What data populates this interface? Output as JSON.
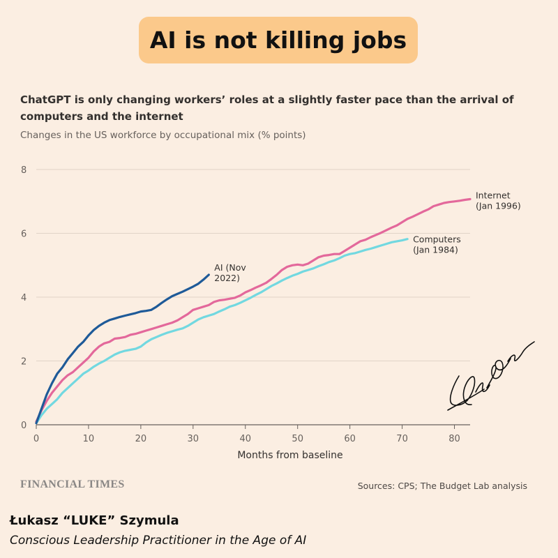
{
  "headline": "AI is not killing jobs",
  "subtitle": "ChatGPT is only changing workers’ roles at a slightly faster pace than the arrival of computers and the internet",
  "units_label": "Changes in the US workforce by occupational mix (% points)",
  "source": "Sources: CPS; The Budget Lab analysis",
  "publisher": "FINANCIAL TIMES",
  "author": {
    "name": "Łukasz “LUKE” Szymula",
    "role": "Conscious Leadership Practitioner in the Age of AI"
  },
  "chart_data": {
    "type": "line",
    "title": "",
    "xlabel": "Months from baseline",
    "ylabel": "",
    "xlim": [
      0,
      83
    ],
    "ylim": [
      0,
      8
    ],
    "xticks": [
      0,
      10,
      20,
      30,
      40,
      50,
      60,
      70,
      80
    ],
    "yticks": [
      0,
      2,
      4,
      6,
      8
    ],
    "grid": "horizontal",
    "legend": "direct labels at line ends",
    "series": [
      {
        "name": "Internet (Jan 1996)",
        "label_lines": [
          "Internet",
          "(Jan 1996)"
        ],
        "color": "#E3689B",
        "x": [
          0,
          1,
          2,
          3,
          4,
          5,
          6,
          7,
          8,
          9,
          10,
          11,
          12,
          13,
          14,
          15,
          16,
          17,
          18,
          19,
          20,
          21,
          22,
          23,
          24,
          25,
          26,
          27,
          28,
          29,
          30,
          31,
          32,
          33,
          34,
          35,
          36,
          37,
          38,
          39,
          40,
          41,
          42,
          43,
          44,
          45,
          46,
          47,
          48,
          49,
          50,
          51,
          52,
          53,
          54,
          55,
          56,
          57,
          58,
          59,
          60,
          61,
          62,
          63,
          64,
          65,
          66,
          67,
          68,
          69,
          70,
          71,
          72,
          73,
          74,
          75,
          76,
          77,
          78,
          79,
          80,
          81,
          82,
          83
        ],
        "values": [
          0.1,
          0.45,
          0.75,
          1.0,
          1.2,
          1.4,
          1.55,
          1.65,
          1.8,
          1.95,
          2.1,
          2.3,
          2.45,
          2.55,
          2.6,
          2.7,
          2.72,
          2.75,
          2.82,
          2.85,
          2.9,
          2.95,
          3.0,
          3.05,
          3.1,
          3.15,
          3.2,
          3.27,
          3.37,
          3.47,
          3.6,
          3.65,
          3.7,
          3.75,
          3.85,
          3.9,
          3.92,
          3.95,
          3.98,
          4.05,
          4.15,
          4.22,
          4.3,
          4.37,
          4.45,
          4.57,
          4.7,
          4.85,
          4.95,
          5.0,
          5.02,
          5.0,
          5.05,
          5.15,
          5.25,
          5.3,
          5.32,
          5.35,
          5.35,
          5.45,
          5.55,
          5.65,
          5.75,
          5.8,
          5.88,
          5.95,
          6.02,
          6.1,
          6.18,
          6.25,
          6.35,
          6.45,
          6.52,
          6.6,
          6.68,
          6.75,
          6.85,
          6.9,
          6.95,
          6.98,
          7.0,
          7.02,
          7.05,
          7.07
        ]
      },
      {
        "name": "Computers (Jan 1984)",
        "label_lines": [
          "Computers",
          "(Jan 1984)"
        ],
        "color": "#72D8E0",
        "x": [
          0,
          1,
          2,
          3,
          4,
          5,
          6,
          7,
          8,
          9,
          10,
          11,
          12,
          13,
          14,
          15,
          16,
          17,
          18,
          19,
          20,
          21,
          22,
          23,
          24,
          25,
          26,
          27,
          28,
          29,
          30,
          31,
          32,
          33,
          34,
          35,
          36,
          37,
          38,
          39,
          40,
          41,
          42,
          43,
          44,
          45,
          46,
          47,
          48,
          49,
          50,
          51,
          52,
          53,
          54,
          55,
          56,
          57,
          58,
          59,
          60,
          61,
          62,
          63,
          64,
          65,
          66,
          67,
          68,
          69,
          70,
          71
        ],
        "values": [
          0.05,
          0.3,
          0.5,
          0.65,
          0.8,
          1.0,
          1.15,
          1.3,
          1.45,
          1.6,
          1.7,
          1.82,
          1.92,
          2.0,
          2.1,
          2.2,
          2.27,
          2.32,
          2.35,
          2.38,
          2.45,
          2.58,
          2.68,
          2.75,
          2.82,
          2.88,
          2.93,
          2.98,
          3.02,
          3.1,
          3.2,
          3.3,
          3.37,
          3.42,
          3.47,
          3.55,
          3.62,
          3.7,
          3.75,
          3.82,
          3.9,
          3.98,
          4.07,
          4.15,
          4.25,
          4.35,
          4.43,
          4.52,
          4.6,
          4.67,
          4.73,
          4.8,
          4.85,
          4.9,
          4.97,
          5.03,
          5.1,
          5.15,
          5.22,
          5.3,
          5.35,
          5.38,
          5.43,
          5.48,
          5.52,
          5.57,
          5.62,
          5.67,
          5.72,
          5.75,
          5.78,
          5.82
        ]
      },
      {
        "name": "AI (Nov 2022)",
        "label_lines": [
          "AI (Nov",
          "2022)"
        ],
        "color": "#1E5A98",
        "x": [
          0,
          1,
          2,
          3,
          4,
          5,
          6,
          7,
          8,
          9,
          10,
          11,
          12,
          13,
          14,
          15,
          16,
          17,
          18,
          19,
          20,
          21,
          22,
          23,
          24,
          25,
          26,
          27,
          28,
          29,
          30,
          31,
          32,
          33
        ],
        "values": [
          0.05,
          0.5,
          0.95,
          1.3,
          1.6,
          1.8,
          2.05,
          2.25,
          2.45,
          2.6,
          2.8,
          2.97,
          3.1,
          3.2,
          3.28,
          3.33,
          3.38,
          3.42,
          3.46,
          3.5,
          3.55,
          3.57,
          3.6,
          3.7,
          3.82,
          3.93,
          4.03,
          4.1,
          4.17,
          4.25,
          4.33,
          4.42,
          4.55,
          4.7
        ]
      }
    ]
  }
}
